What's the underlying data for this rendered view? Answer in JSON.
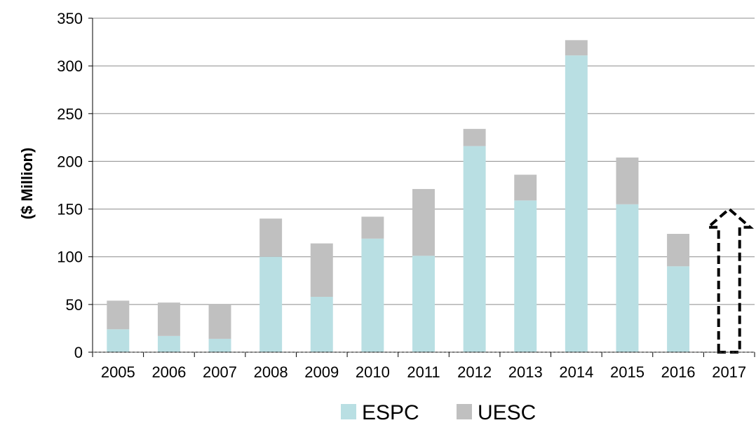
{
  "chart_data": {
    "type": "bar",
    "stacked": true,
    "title": "",
    "xlabel": "",
    "ylabel": "($ Million)",
    "ylim": [
      0,
      350
    ],
    "yticks": [
      0,
      50,
      100,
      150,
      200,
      250,
      300,
      350
    ],
    "categories": [
      "2005",
      "2006",
      "2007",
      "2008",
      "2009",
      "2010",
      "2011",
      "2012",
      "2013",
      "2014",
      "2015",
      "2016",
      "2017"
    ],
    "series": [
      {
        "name": "ESPC",
        "color": "#b9dfe3",
        "values": [
          24,
          17,
          14,
          100,
          58,
          119,
          101,
          216,
          159,
          311,
          155,
          90,
          null
        ]
      },
      {
        "name": "UESC",
        "color": "#c0c0c0",
        "values": [
          30,
          35,
          36,
          40,
          56,
          23,
          70,
          18,
          27,
          16,
          49,
          34,
          null
        ]
      }
    ],
    "annotations": [
      {
        "type": "dashed-up-arrow",
        "category": "2017",
        "from": 0,
        "to": 150
      }
    ],
    "grid": "horizontal",
    "legend": "bottom"
  }
}
